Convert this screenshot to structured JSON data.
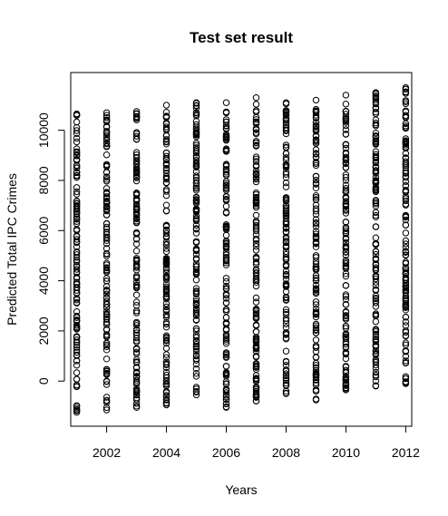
{
  "chart_data": {
    "type": "scatter",
    "title": "Test set result",
    "xlabel": "Years",
    "ylabel": "Predicted Total IPC Crimes",
    "xlim": [
      2000.8,
      2012.2
    ],
    "ylim": [
      -1800,
      12300
    ],
    "xticks": [
      2002,
      2004,
      2006,
      2008,
      2010,
      2012
    ],
    "yticks": [
      0,
      2000,
      4000,
      6000,
      8000,
      10000
    ],
    "x_tick_labels": [
      "2002",
      "2004",
      "2006",
      "2008",
      "2010",
      "2012"
    ],
    "y_tick_labels": [
      "0",
      "2000",
      "4000",
      "6000",
      "8000",
      "10000"
    ],
    "marker": "open-circle",
    "grid": false,
    "series": [
      {
        "x": 2001,
        "y_min": -1250,
        "y_max": 10650,
        "count": 130
      },
      {
        "x": 2002,
        "y_min": -1150,
        "y_max": 10700,
        "count": 130
      },
      {
        "x": 2003,
        "y_min": -1050,
        "y_max": 10750,
        "count": 130
      },
      {
        "x": 2004,
        "y_min": -950,
        "y_max": 11000,
        "count": 130
      },
      {
        "x": 2005,
        "y_min": -550,
        "y_max": 11100,
        "count": 130
      },
      {
        "x": 2006,
        "y_min": -1050,
        "y_max": 11100,
        "count": 130
      },
      {
        "x": 2007,
        "y_min": -800,
        "y_max": 11300,
        "count": 130
      },
      {
        "x": 2008,
        "y_min": -500,
        "y_max": 11100,
        "count": 130
      },
      {
        "x": 2009,
        "y_min": -750,
        "y_max": 11200,
        "count": 130
      },
      {
        "x": 2010,
        "y_min": -350,
        "y_max": 11400,
        "count": 130
      },
      {
        "x": 2011,
        "y_min": -200,
        "y_max": 11500,
        "count": 130
      },
      {
        "x": 2012,
        "y_min": -100,
        "y_max": 11700,
        "count": 130
      }
    ]
  }
}
